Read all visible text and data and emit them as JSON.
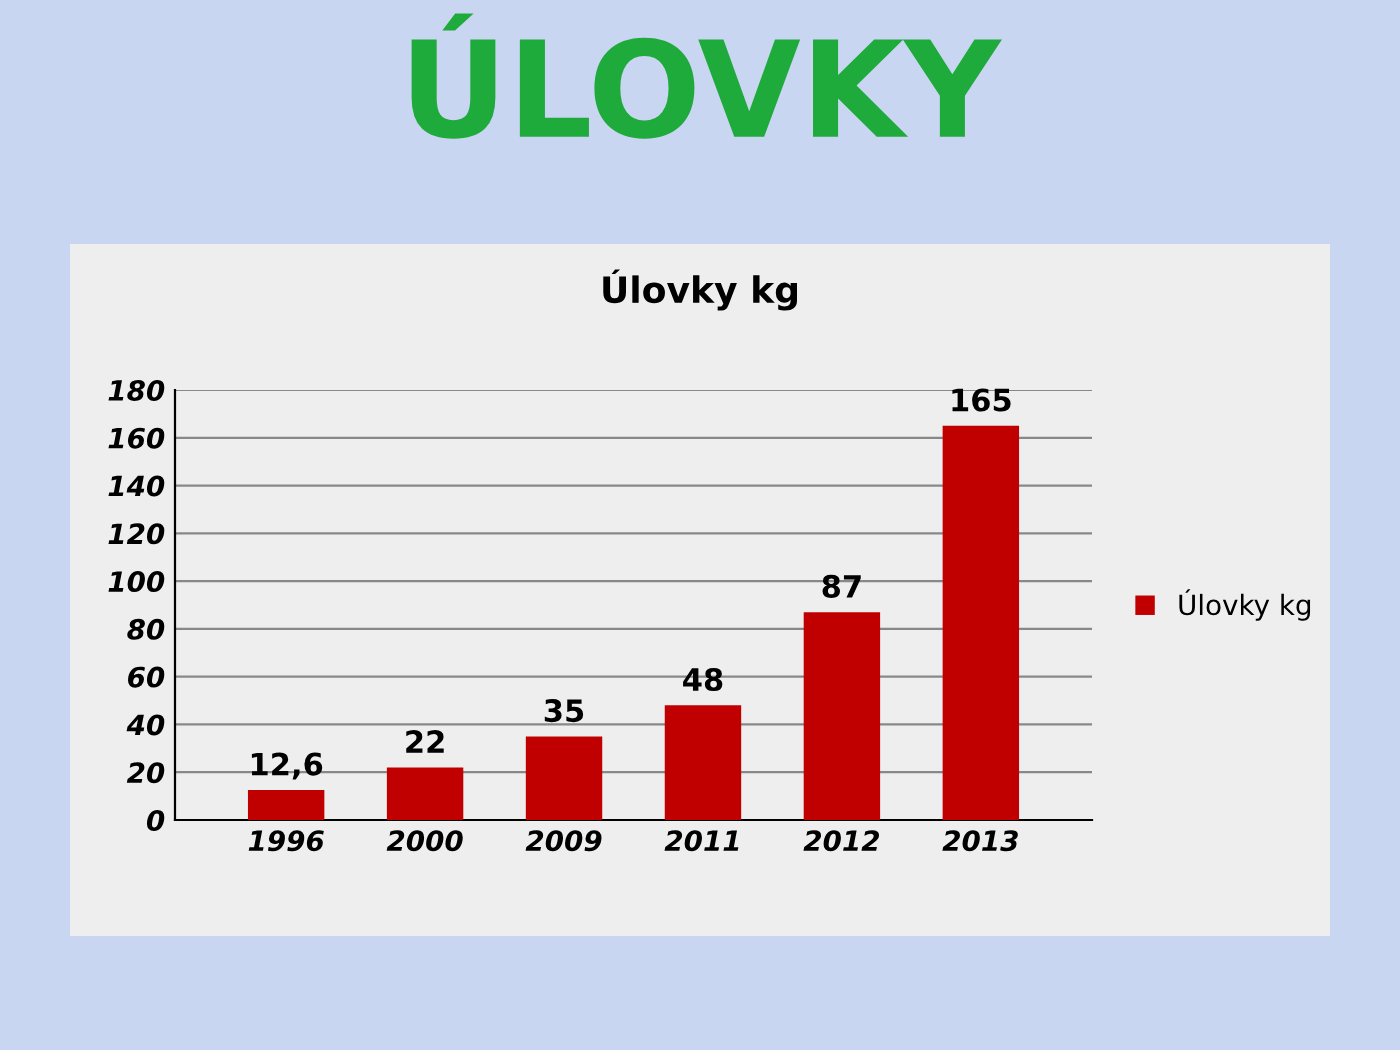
{
  "chart_data": {
    "type": "bar",
    "title": "ÚLOVKY",
    "subtitle": "Úlovky kg",
    "categories": [
      "1996",
      "2000",
      "2009",
      "2011",
      "2012",
      "2013"
    ],
    "series": [
      {
        "name": "Úlovky kg",
        "color": "#c00000",
        "values": [
          12.6,
          22,
          35,
          48,
          87,
          165
        ],
        "value_labels": [
          "12,6",
          "22",
          "35",
          "48",
          "87",
          "165"
        ]
      }
    ],
    "ylim": [
      0,
      180
    ],
    "yticks": [
      0,
      20,
      40,
      60,
      80,
      100,
      120,
      140,
      160,
      180
    ],
    "grid": "y",
    "legend": "right"
  }
}
